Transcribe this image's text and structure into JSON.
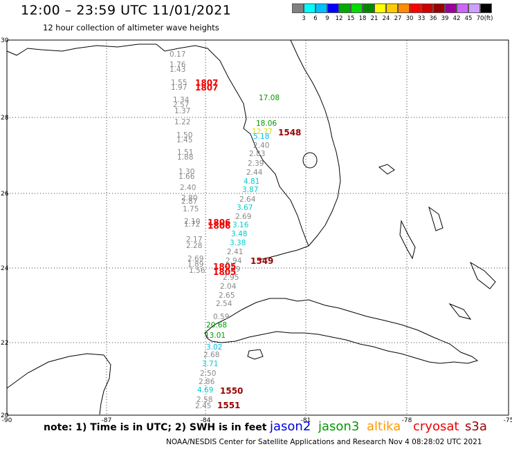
{
  "title": "12:00 – 23:59 UTC 11/01/2021",
  "subtitle": "12 hour collection of altimeter wave heights",
  "colorbar": {
    "unit": "(ft)",
    "labels": [
      "3",
      "6",
      "9",
      "12",
      "15",
      "18",
      "21",
      "24",
      "27",
      "30",
      "33",
      "36",
      "39",
      "42",
      "45",
      "70"
    ],
    "colors": [
      "#808080",
      "#00ffff",
      "#00bfff",
      "#0000ff",
      "#00aa00",
      "#00dd00",
      "#008800",
      "#ffff00",
      "#ffcc00",
      "#ff8c00",
      "#ff0000",
      "#cc0000",
      "#990000",
      "#990099",
      "#cc66ff",
      "#cfa0ff",
      "#000000"
    ]
  },
  "lat_ticks": [
    "30",
    "28",
    "26",
    "24",
    "22",
    "20"
  ],
  "lon_ticks": [
    "-90",
    "-87",
    "-84",
    "-81",
    "-78",
    "-75"
  ],
  "observations": [
    {
      "v": "0.17",
      "c": "#888888"
    },
    {
      "v": "1.76",
      "c": "#888888"
    },
    {
      "v": "1.43",
      "c": "#888888"
    },
    {
      "v": "1.55",
      "c": "#888888"
    },
    {
      "v": "1.97",
      "c": "#888888"
    },
    {
      "v": "1.34",
      "c": "#888888"
    },
    {
      "v": "2.57",
      "c": "#888888"
    },
    {
      "v": "1.37",
      "c": "#888888"
    },
    {
      "v": "1.22",
      "c": "#888888"
    },
    {
      "v": "1.50",
      "c": "#888888"
    },
    {
      "v": "1.45",
      "c": "#888888"
    },
    {
      "v": "1.51",
      "c": "#888888"
    },
    {
      "v": "1.88",
      "c": "#888888"
    },
    {
      "v": "1.30",
      "c": "#888888"
    },
    {
      "v": "1.66",
      "c": "#888888"
    },
    {
      "v": "2.40",
      "c": "#888888"
    },
    {
      "v": "2.80",
      "c": "#888888"
    },
    {
      "v": "2.87",
      "c": "#888888"
    },
    {
      "v": "1.75",
      "c": "#888888"
    },
    {
      "v": "2.10",
      "c": "#888888"
    },
    {
      "v": "1.72",
      "c": "#888888"
    },
    {
      "v": "2.17",
      "c": "#888888"
    },
    {
      "v": "2.28",
      "c": "#888888"
    },
    {
      "v": "2.69",
      "c": "#888888"
    },
    {
      "v": "1.89",
      "c": "#888888"
    },
    {
      "v": "1.56",
      "c": "#888888"
    },
    {
      "v": "17.08",
      "c": "#009900"
    },
    {
      "v": "18.06",
      "c": "#009900"
    },
    {
      "v": "12.77",
      "c": "#dddd00"
    },
    {
      "v": "5.18",
      "c": "#00bbee"
    },
    {
      "v": "2.40",
      "c": "#888888"
    },
    {
      "v": "2.83",
      "c": "#888888"
    },
    {
      "v": "2.39",
      "c": "#888888"
    },
    {
      "v": "2.44",
      "c": "#888888"
    },
    {
      "v": "4.81",
      "c": "#00cccc"
    },
    {
      "v": "3.87",
      "c": "#00cccc"
    },
    {
      "v": "2.64",
      "c": "#888888"
    },
    {
      "v": "3.67",
      "c": "#00cccc"
    },
    {
      "v": "2.69",
      "c": "#888888"
    },
    {
      "v": "3.16",
      "c": "#00cccc"
    },
    {
      "v": "3.48",
      "c": "#00cccc"
    },
    {
      "v": "3.38",
      "c": "#00cccc"
    },
    {
      "v": "2.41",
      "c": "#888888"
    },
    {
      "v": "2.94",
      "c": "#888888"
    },
    {
      "v": "2.59",
      "c": "#888888"
    },
    {
      "v": "2.95",
      "c": "#888888"
    },
    {
      "v": "2.04",
      "c": "#888888"
    },
    {
      "v": "2.65",
      "c": "#888888"
    },
    {
      "v": "2.54",
      "c": "#888888"
    },
    {
      "v": "0.59",
      "c": "#888888"
    },
    {
      "v": "20.68",
      "c": "#009900"
    },
    {
      "v": "13.01",
      "c": "#009900"
    },
    {
      "v": "3.02",
      "c": "#00bbee"
    },
    {
      "v": "2.68",
      "c": "#888888"
    },
    {
      "v": "3.71",
      "c": "#00cccc"
    },
    {
      "v": "2.50",
      "c": "#888888"
    },
    {
      "v": "2.86",
      "c": "#888888"
    },
    {
      "v": "4.69",
      "c": "#00cccc"
    },
    {
      "v": "2.58",
      "c": "#888888"
    },
    {
      "v": "2.45",
      "c": "#888888"
    }
  ],
  "passes": [
    {
      "v": "1807",
      "c": "#ee0000"
    },
    {
      "v": "1807",
      "c": "#ee0000"
    },
    {
      "v": "1548",
      "c": "#990000"
    },
    {
      "v": "1806",
      "c": "#ee0000"
    },
    {
      "v": "1806",
      "c": "#ee0000"
    },
    {
      "v": "1549",
      "c": "#990000"
    },
    {
      "v": "1805",
      "c": "#ee0000"
    },
    {
      "v": "1805",
      "c": "#ee0000"
    },
    {
      "v": "1550",
      "c": "#990000"
    },
    {
      "v": "1551",
      "c": "#990000"
    }
  ],
  "footer": {
    "note": "note: 1) Time is in UTC; 2) SWH is in feet",
    "credit": "NOAA/NESDIS Center for Satellite Applications and Research   Nov  4 08:28:02 UTC 2021",
    "satellites": [
      {
        "name": "jason2",
        "color": "#0000dd"
      },
      {
        "name": "jason3",
        "color": "#009900"
      },
      {
        "name": "altika",
        "color": "#ff9900"
      },
      {
        "name": "cryosat",
        "color": "#ee0000"
      },
      {
        "name": "s3a",
        "color": "#990000"
      }
    ]
  }
}
